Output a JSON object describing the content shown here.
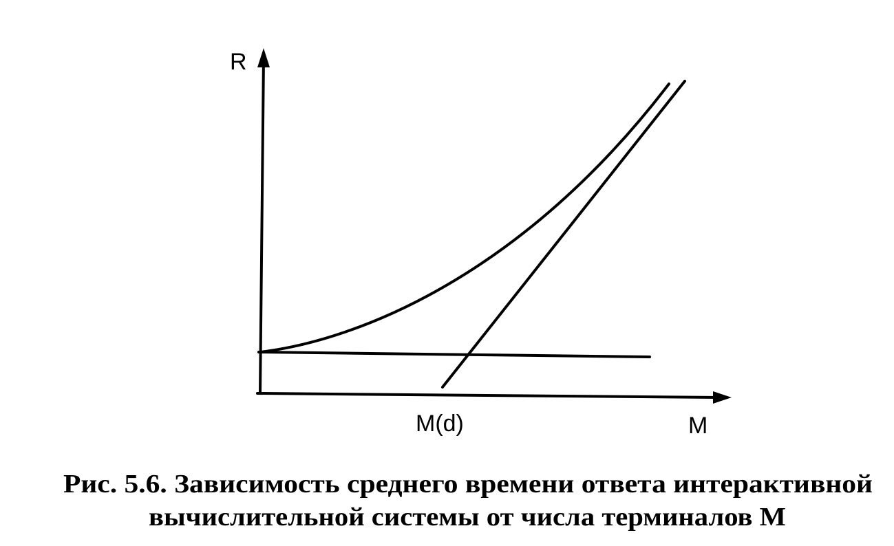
{
  "axes": {
    "y_label": "R",
    "x_label": "M",
    "x_marker": "M(d)"
  },
  "caption": {
    "label": "Рис. 5.6.",
    "lines": [
      "Зависимость среднего времени ответа интерактивной",
      "вычислительной системы от числа терминалов М"
    ]
  }
}
